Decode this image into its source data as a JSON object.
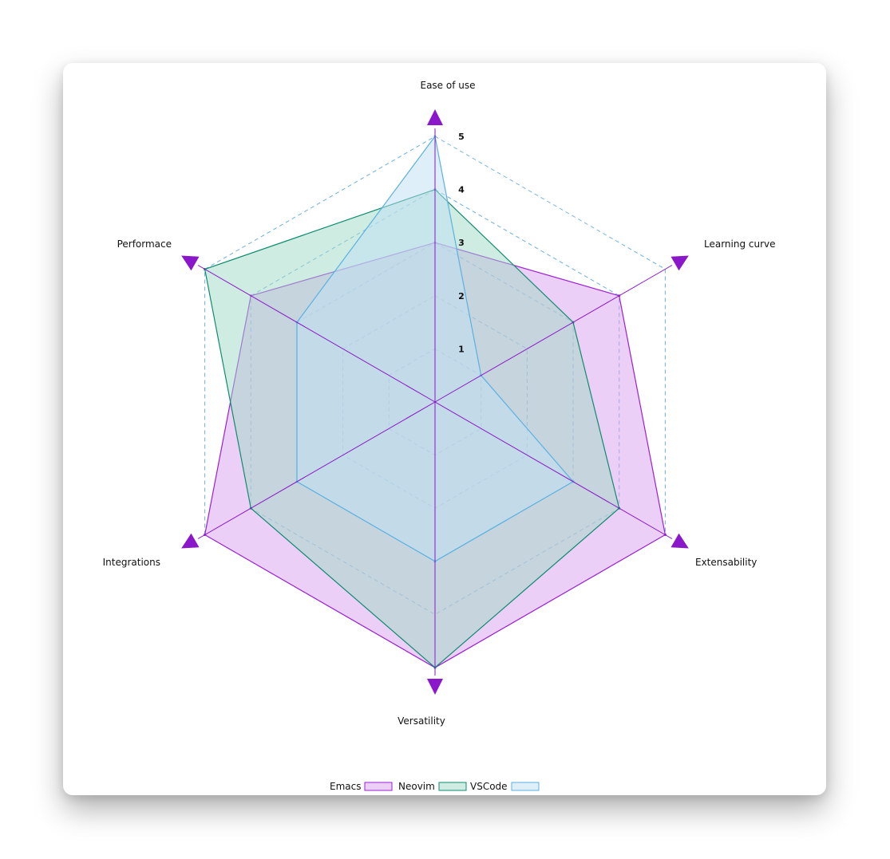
{
  "chart_data": {
    "type": "radar",
    "axes": [
      "Ease of use",
      "Learning curve",
      "Extensability",
      "Versatility",
      "Integrations",
      "Performace"
    ],
    "r_ticks": [
      1,
      2,
      3,
      4,
      5
    ],
    "r_max": 5,
    "series": [
      {
        "name": "Emacs",
        "values": [
          3,
          4,
          5,
          5,
          5,
          4
        ],
        "stroke": "#9b1fd6",
        "fill": "#d9a0ee"
      },
      {
        "name": "Neovim",
        "values": [
          4,
          3,
          4,
          5,
          4,
          5
        ],
        "stroke": "#0e8c6e",
        "fill": "#9fd9c5"
      },
      {
        "name": "VSCode",
        "values": [
          5,
          1,
          3,
          3,
          3,
          3
        ],
        "stroke": "#5ab1e0",
        "fill": "#bfe0f4"
      }
    ],
    "grid_color": "#6cb0e0",
    "axis_color": "#8a17c9",
    "legend_position": "bottom"
  }
}
